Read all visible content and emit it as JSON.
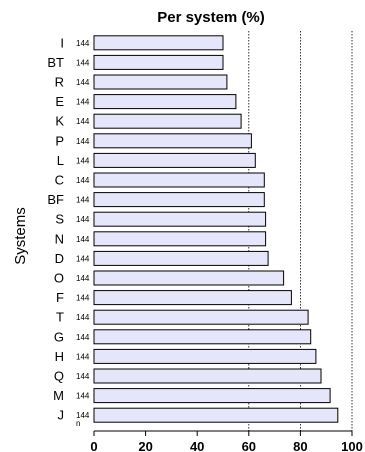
{
  "chart_data": {
    "type": "bar",
    "orientation": "horizontal",
    "title": "Per system (%)",
    "xlabel": "",
    "ylabel": "Systems",
    "xlim": [
      0,
      100
    ],
    "x_ticks": [
      0,
      20,
      40,
      60,
      80,
      100
    ],
    "reference_lines": [
      60,
      80,
      100
    ],
    "n_label": "n",
    "bar_color": "#e6e6fa",
    "categories": [
      "I",
      "BT",
      "R",
      "E",
      "K",
      "P",
      "L",
      "C",
      "BF",
      "S",
      "N",
      "D",
      "O",
      "F",
      "T",
      "G",
      "H",
      "Q",
      "M",
      "J"
    ],
    "n": [
      "144",
      "144",
      "144",
      "144",
      "144",
      "144",
      "144",
      "144",
      "144",
      "144",
      "144",
      "144",
      "144",
      "144",
      "144",
      "144",
      "144",
      "144",
      "144",
      "144"
    ],
    "values": [
      50,
      50,
      51.5,
      55,
      57,
      61,
      62.5,
      66,
      66,
      66.5,
      66.5,
      67.5,
      73.5,
      76.5,
      83,
      84,
      86,
      88,
      91.5,
      94.5
    ]
  }
}
